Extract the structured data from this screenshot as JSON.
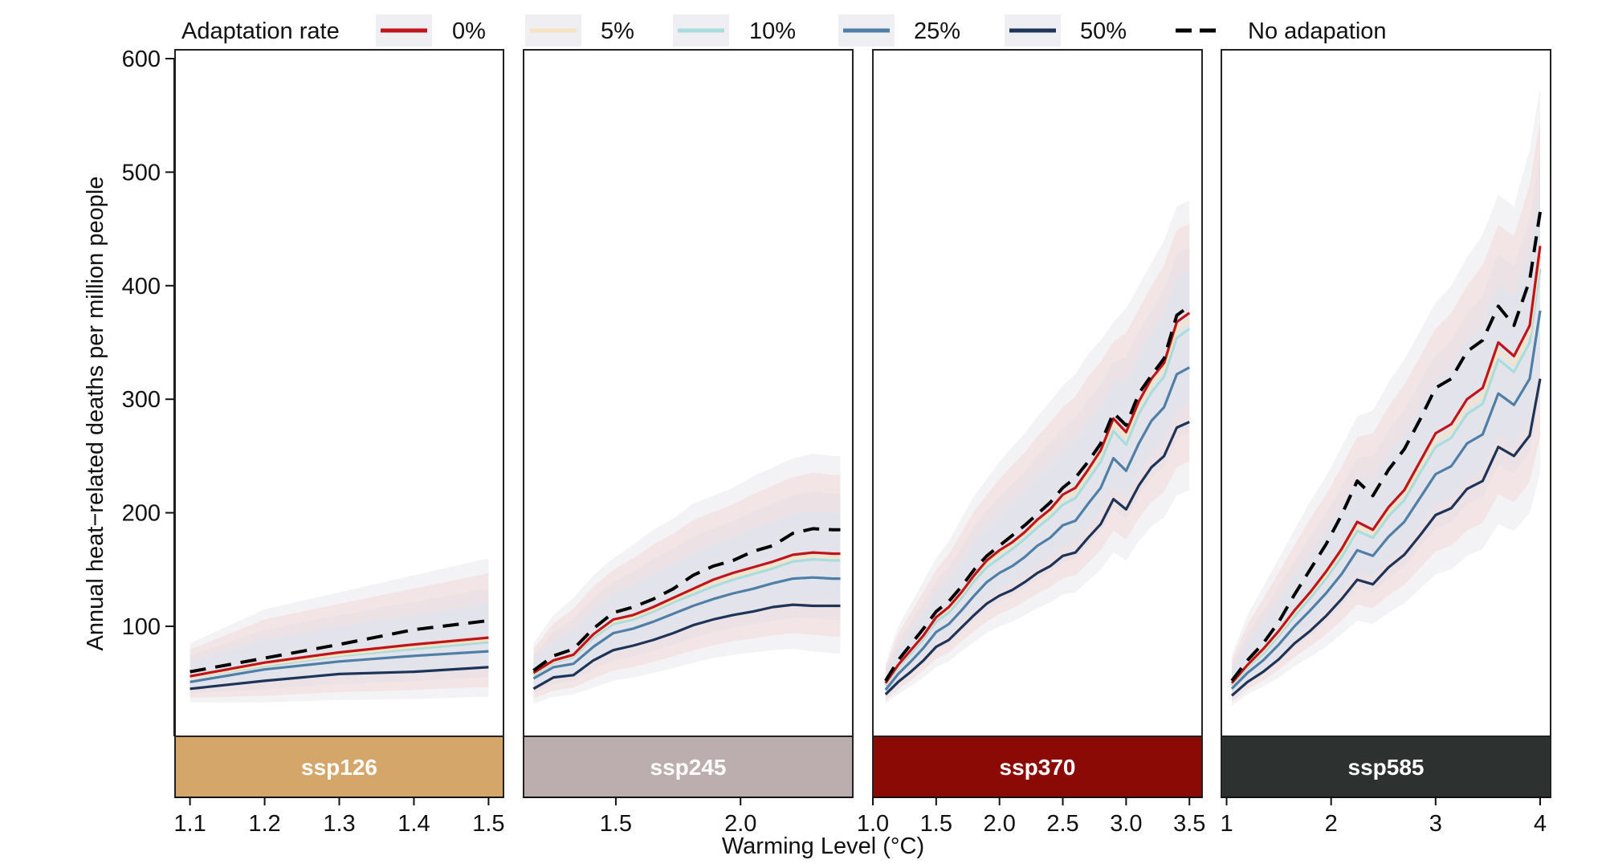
{
  "chart_data": {
    "type": "line",
    "ylabel": "Annual heat−related deaths per million people",
    "xlabel": "Warming Level (°C)",
    "ylim": [
      0,
      600
    ],
    "yticks": [
      100,
      200,
      300,
      400,
      500,
      600
    ],
    "legend": {
      "title": "Adaptation rate",
      "placement": "top",
      "entries": [
        {
          "label": "0%",
          "color": "#c0141b",
          "style": "solid"
        },
        {
          "label": "5%",
          "color": "#f6e3c0",
          "style": "solid"
        },
        {
          "label": "10%",
          "color": "#a9dcdc",
          "style": "solid"
        },
        {
          "label": "25%",
          "color": "#4f7fa6",
          "style": "solid"
        },
        {
          "label": "50%",
          "color": "#1d3357",
          "style": "solid"
        },
        {
          "label": "No adapation",
          "color": "#000000",
          "style": "dashed"
        }
      ]
    },
    "panels": [
      {
        "scenario": "ssp126",
        "strip_color": "#d4a66a",
        "xlim": [
          1.08,
          1.52
        ],
        "xticks": [
          1.1,
          1.2,
          1.3,
          1.4,
          1.5
        ],
        "xtick_labels": [
          "1.1",
          "1.2",
          "1.3",
          "1.4",
          "1.5"
        ],
        "x": [
          1.1,
          1.2,
          1.3,
          1.4,
          1.5
        ],
        "series": [
          {
            "name": "No adapation",
            "values": [
              60,
              72,
              84,
              97,
              105
            ]
          },
          {
            "name": "0%",
            "values": [
              56,
              68,
              77,
              84,
              90
            ]
          },
          {
            "name": "5%",
            "values": [
              55,
              66,
              75,
              82,
              88
            ]
          },
          {
            "name": "10%",
            "values": [
              55,
              65,
              74,
              80,
              86
            ]
          },
          {
            "name": "25%",
            "values": [
              51,
              62,
              69,
              74,
              78
            ]
          },
          {
            "name": "50%",
            "values": [
              45,
              52,
              58,
              60,
              64
            ]
          }
        ],
        "band_lower": [
          33,
          33,
          35,
          36,
          38
        ],
        "band_upper": [
          85,
          115,
          130,
          145,
          160
        ]
      },
      {
        "scenario": "ssp245",
        "strip_color": "#bcaeae",
        "xlim": [
          1.13,
          2.45
        ],
        "xticks": [
          1.5,
          2.0
        ],
        "xtick_labels": [
          "1.5",
          "2.0"
        ],
        "x": [
          1.17,
          1.25,
          1.33,
          1.41,
          1.49,
          1.57,
          1.65,
          1.73,
          1.81,
          1.89,
          1.97,
          2.05,
          2.13,
          2.21,
          2.29,
          2.37,
          2.4
        ],
        "series": [
          {
            "name": "No adapation",
            "values": [
              61,
              74,
              80,
              98,
              112,
              117,
              124,
              133,
              145,
              153,
              158,
              166,
              171,
              182,
              186,
              185,
              185
            ]
          },
          {
            "name": "0%",
            "values": [
              59,
              70,
              75,
              93,
              106,
              110,
              117,
              125,
              133,
              141,
              147,
              152,
              157,
              163,
              165,
              164,
              164
            ]
          },
          {
            "name": "5%",
            "values": [
              58,
              69,
              74,
              92,
              104,
              108,
              115,
              123,
              131,
              138,
              144,
              149,
              154,
              160,
              162,
              161,
              161
            ]
          },
          {
            "name": "10%",
            "values": [
              57,
              68,
              73,
              90,
              102,
              106,
              113,
              121,
              128,
              135,
              141,
              146,
              151,
              157,
              159,
              158,
              158
            ]
          },
          {
            "name": "25%",
            "values": [
              54,
              64,
              67,
              82,
              94,
              98,
              104,
              111,
              118,
              124,
              129,
              133,
              138,
              142,
              143,
              142,
              142
            ]
          },
          {
            "name": "50%",
            "values": [
              45,
              55,
              57,
              70,
              79,
              83,
              88,
              94,
              101,
              106,
              110,
              113,
              117,
              119,
              118,
              118,
              118
            ]
          }
        ],
        "band_lower": [
          32,
          38,
          40,
          46,
          52,
          55,
          59,
          63,
          68,
          72,
          75,
          77,
          79,
          80,
          78,
          76,
          76
        ],
        "band_upper": [
          85,
          110,
          125,
          145,
          160,
          172,
          185,
          195,
          208,
          215,
          222,
          232,
          240,
          248,
          252,
          250,
          250
        ]
      },
      {
        "scenario": "ssp370",
        "strip_color": "#8b0a06",
        "xlim": [
          1.0,
          3.6
        ],
        "xticks": [
          1.0,
          1.5,
          2.0,
          2.5,
          3.0,
          3.5
        ],
        "xtick_labels": [
          "1.0",
          "1.5",
          "2.0",
          "2.5",
          "3.0",
          "3.5"
        ],
        "x": [
          1.1,
          1.2,
          1.3,
          1.4,
          1.5,
          1.6,
          1.7,
          1.8,
          1.9,
          2.0,
          2.1,
          2.2,
          2.3,
          2.4,
          2.5,
          2.6,
          2.7,
          2.8,
          2.9,
          3.0,
          3.1,
          3.2,
          3.3,
          3.4,
          3.5
        ],
        "series": [
          {
            "name": "No adapation",
            "values": [
              52,
              70,
              84,
              98,
              113,
              122,
              135,
              150,
              162,
              171,
              180,
              189,
              199,
              209,
              222,
              231,
              245,
              261,
              288,
              277,
              305,
              321,
              336,
              374,
              382
            ]
          },
          {
            "name": "0%",
            "values": [
              50,
              66,
              79,
              92,
              108,
              117,
              130,
              145,
              158,
              167,
              174,
              183,
              194,
              203,
              216,
              222,
              238,
              255,
              283,
              271,
              298,
              318,
              332,
              368,
              376
            ]
          },
          {
            "name": "5%",
            "values": [
              49,
              65,
              78,
              91,
              107,
              115,
              128,
              143,
              156,
              164,
              172,
              181,
              191,
              200,
              212,
              218,
              234,
              251,
              278,
              266,
              293,
              313,
              327,
              362,
              370
            ]
          },
          {
            "name": "10%",
            "values": [
              48,
              64,
              76,
              89,
              104,
              112,
              125,
              140,
              152,
              160,
              168,
              177,
              187,
              196,
              207,
              213,
              229,
              245,
              272,
              260,
              287,
              306,
              320,
              354,
              362
            ]
          },
          {
            "name": "25%",
            "values": [
              44,
              58,
              69,
              81,
              95,
              102,
              114,
              127,
              139,
              147,
              153,
              161,
              171,
              178,
              189,
              193,
              208,
              222,
              248,
              237,
              261,
              281,
              293,
              322,
              328
            ]
          },
          {
            "name": "50%",
            "values": [
              40,
              51,
              60,
              70,
              82,
              88,
              99,
              110,
              120,
              127,
              132,
              139,
              147,
              153,
              162,
              165,
              178,
              190,
              212,
              203,
              224,
              240,
              250,
              275,
              280
            ]
          }
        ],
        "band_lower": [
          32,
          40,
          47,
          55,
          64,
          69,
          78,
          86,
          94,
          100,
          104,
          110,
          116,
          121,
          128,
          130,
          140,
          150,
          165,
          158,
          175,
          188,
          196,
          215,
          220
        ],
        "band_upper": [
          68,
          100,
          120,
          140,
          160,
          175,
          195,
          215,
          230,
          245,
          258,
          270,
          285,
          298,
          312,
          322,
          340,
          352,
          368,
          380,
          400,
          420,
          440,
          470,
          475
        ]
      },
      {
        "scenario": "ssp585",
        "strip_color": "#2d3230",
        "xlim": [
          0.95,
          4.1
        ],
        "xticks": [
          1,
          2,
          3,
          4
        ],
        "xtick_labels": [
          "1",
          "2",
          "3",
          "4"
        ],
        "x": [
          1.05,
          1.2,
          1.35,
          1.5,
          1.65,
          1.8,
          1.95,
          2.1,
          2.25,
          2.4,
          2.55,
          2.7,
          2.85,
          3.0,
          3.15,
          3.3,
          3.45,
          3.6,
          3.75,
          3.9,
          4.0
        ],
        "series": [
          {
            "name": "No adapation",
            "values": [
              52,
              70,
              85,
              104,
              128,
              150,
              172,
              198,
              228,
              215,
              238,
              256,
              282,
              310,
              318,
              342,
              352,
              382,
              365,
              405,
              465
            ]
          },
          {
            "name": "0%",
            "values": [
              50,
              66,
              80,
              96,
              114,
              130,
              148,
              168,
              192,
              185,
              205,
              220,
              245,
              270,
              278,
              300,
              310,
              350,
              338,
              365,
              435
            ]
          },
          {
            "name": "5%",
            "values": [
              49,
              65,
              78,
              94,
              112,
              128,
              145,
              165,
              188,
              182,
              201,
              216,
              240,
              264,
              272,
              294,
              303,
              343,
              331,
              358,
              426
            ]
          },
          {
            "name": "10%",
            "values": [
              48,
              64,
              76,
              92,
              109,
              125,
              142,
              161,
              184,
              178,
              197,
              211,
              235,
              258,
              266,
              287,
              296,
              335,
              324,
              350,
              415
            ]
          },
          {
            "name": "25%",
            "values": [
              45,
              59,
              70,
              84,
              100,
              114,
              129,
              146,
              167,
              162,
              179,
              192,
              213,
              234,
              241,
              261,
              269,
              305,
              295,
              318,
              378
            ]
          },
          {
            "name": "50%",
            "values": [
              39,
              51,
              60,
              71,
              85,
              96,
              109,
              124,
              141,
              137,
              152,
              163,
              180,
              198,
              204,
              221,
              228,
              258,
              250,
              268,
              318
            ]
          }
        ],
        "band_lower": [
          30,
          40,
          47,
          55,
          65,
          73,
          82,
          93,
          105,
          102,
          112,
          120,
          133,
          146,
          150,
          162,
          168,
          190,
          184,
          200,
          235
        ],
        "band_upper": [
          75,
          110,
          135,
          160,
          185,
          210,
          232,
          258,
          285,
          290,
          315,
          335,
          360,
          385,
          400,
          425,
          445,
          480,
          470,
          520,
          575
        ]
      }
    ]
  }
}
